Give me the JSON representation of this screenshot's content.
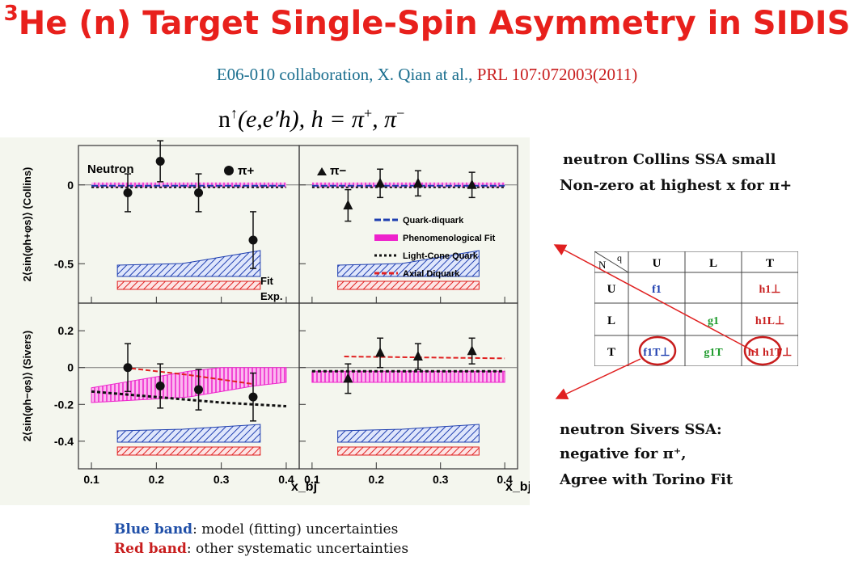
{
  "slide": {
    "title_sup": "3",
    "title_main": "He (n) Target Single-Spin Asymmetry in SIDIS",
    "citation_main": "E06-010 collaboration,  X. Qian at al., ",
    "citation_ref": "PRL 107:072003(2011)",
    "reaction_lhs": "n",
    "reaction_arrow": "↑",
    "reaction_mid": "(e,e′h), h = π",
    "reaction_plus": "+",
    "reaction_sep": ", π",
    "reaction_minus": "−"
  },
  "notes": {
    "collins_line1": "neutron Collins SSA small",
    "collins_line2": "Non-zero at highest x for π+",
    "sivers_line1": "neutron  Sivers SSA:",
    "sivers_line2": "negative for π⁺,",
    "sivers_line3": "Agree with Torino Fit"
  },
  "captions": {
    "blue_label": "Blue band",
    "blue_text": ": model (fitting) uncertainties",
    "red_label": "Red band",
    "red_text": ": other systematic uncertainties"
  },
  "tmd_table": {
    "corner_n": "N",
    "corner_q": "q",
    "col_headers": [
      "U",
      "L",
      "T"
    ],
    "row_headers": [
      "U",
      "L",
      "T"
    ],
    "cells": [
      [
        "f1",
        "",
        "h1⊥"
      ],
      [
        "",
        "g1",
        "h1L⊥"
      ],
      [
        "f1T⊥",
        "g1T",
        "h1  h1T⊥"
      ]
    ],
    "colors": {
      "f": "#1f3fb0",
      "g": "#1c9a2a",
      "h": "#c81e1e"
    }
  },
  "chart_data": {
    "type": "scatter",
    "panel_label": "Neutron",
    "xlabel": "x_bj",
    "x_ticks": [
      0.1,
      0.2,
      0.3,
      0.4
    ],
    "xlim": [
      0.08,
      0.42
    ],
    "legend": [
      "Quark-diquark",
      "Phenomenological Fit",
      "Light-Cone Quark",
      "Axial Diquark"
    ],
    "band_labels": [
      "Fit",
      "Exp."
    ],
    "colors": {
      "quark_diquark": "#1f3fb0",
      "pheno": "#ee22cc",
      "light_cone": "#111111",
      "axial": "#e02020"
    },
    "panels": [
      {
        "id": "collins-pi-plus",
        "ylabel": "2⟨sin(φh+φs)⟩ (Collins)",
        "ylim": [
          -0.75,
          0.25
        ],
        "y_ticks": [
          0,
          -0.5
        ],
        "hadron": "π+",
        "points": [
          {
            "x": 0.156,
            "y": -0.05,
            "err": 0.12
          },
          {
            "x": 0.206,
            "y": 0.15,
            "err": 0.13
          },
          {
            "x": 0.265,
            "y": -0.05,
            "err": 0.12
          },
          {
            "x": 0.349,
            "y": -0.35,
            "err": 0.18
          }
        ]
      },
      {
        "id": "collins-pi-minus",
        "ylabel": "",
        "ylim": [
          -0.75,
          0.25
        ],
        "y_ticks": [
          0,
          -0.5
        ],
        "hadron": "π−",
        "points": [
          {
            "x": 0.156,
            "y": -0.13,
            "err": 0.1
          },
          {
            "x": 0.206,
            "y": 0.01,
            "err": 0.09
          },
          {
            "x": 0.265,
            "y": 0.01,
            "err": 0.08
          },
          {
            "x": 0.349,
            "y": 0.0,
            "err": 0.08
          }
        ]
      },
      {
        "id": "sivers-pi-plus",
        "ylabel": "2⟨sin(φh−φs)⟩ (Sivers)",
        "ylim": [
          -0.55,
          0.35
        ],
        "y_ticks": [
          0.2,
          0,
          -0.2,
          -0.4
        ],
        "hadron": "π+",
        "points": [
          {
            "x": 0.156,
            "y": 0.0,
            "err": 0.13
          },
          {
            "x": 0.206,
            "y": -0.1,
            "err": 0.12
          },
          {
            "x": 0.265,
            "y": -0.12,
            "err": 0.11
          },
          {
            "x": 0.349,
            "y": -0.16,
            "err": 0.13
          }
        ]
      },
      {
        "id": "sivers-pi-minus",
        "ylabel": "",
        "ylim": [
          -0.55,
          0.35
        ],
        "y_ticks": [
          0.2,
          0,
          -0.2,
          -0.4
        ],
        "hadron": "π−",
        "points": [
          {
            "x": 0.156,
            "y": -0.06,
            "err": 0.08
          },
          {
            "x": 0.206,
            "y": 0.08,
            "err": 0.08
          },
          {
            "x": 0.265,
            "y": 0.06,
            "err": 0.07
          },
          {
            "x": 0.349,
            "y": 0.09,
            "err": 0.07
          }
        ]
      }
    ]
  }
}
